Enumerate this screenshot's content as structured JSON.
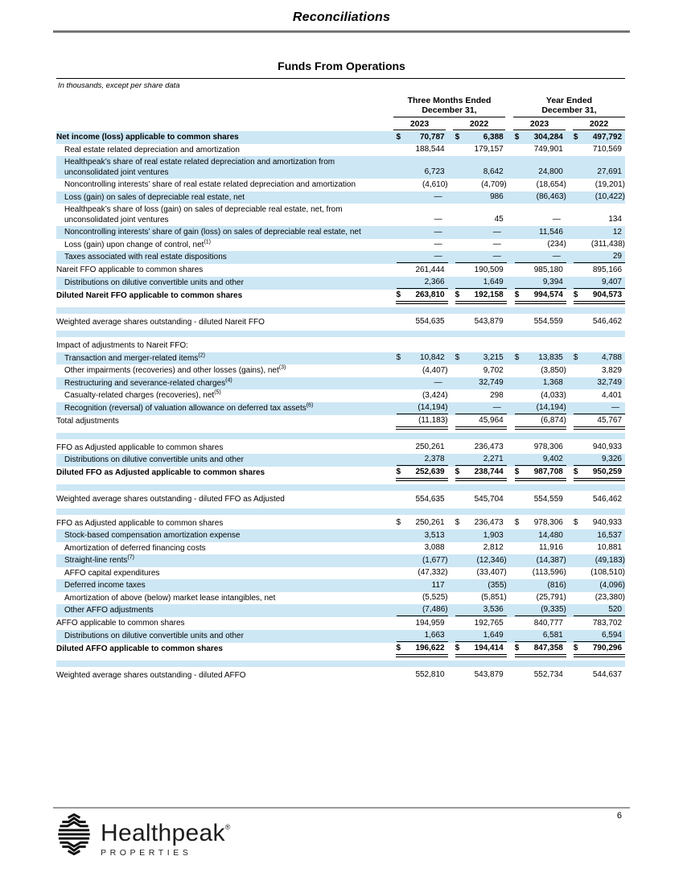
{
  "page": {
    "header_title": "Reconciliations",
    "page_number": "6"
  },
  "report": {
    "title": "Funds From Operations",
    "units_note": "In thousands, except per share data",
    "header": {
      "groups": [
        {
          "line1": "Three Months Ended",
          "line2": "December 31,"
        },
        {
          "line1": "Year Ended",
          "line2": "December 31,"
        }
      ],
      "years": [
        "2023",
        "2022",
        "2023",
        "2022"
      ]
    }
  },
  "table": {
    "rows": [
      {
        "label": "Net income (loss) applicable to common shares",
        "indent": 0,
        "bold": true,
        "shaded": true,
        "dollar": true,
        "values": [
          "70,787",
          "6,388",
          "304,284",
          "497,792"
        ],
        "rule": ""
      },
      {
        "label": "Real estate related depreciation and amortization",
        "indent": 1,
        "values": [
          "188,544",
          "179,157",
          "749,901",
          "710,569"
        ],
        "rule": ""
      },
      {
        "label": "Healthpeak’s share of real estate related depreciation and amortization from unconsolidated joint ventures",
        "indent": 1,
        "shaded": true,
        "values": [
          "6,723",
          "8,642",
          "24,800",
          "27,691"
        ],
        "rule": ""
      },
      {
        "label": "Noncontrolling interests’ share of real estate related depreciation and amortization",
        "indent": 1,
        "values": [
          "(4,610)",
          "(4,709)",
          "(18,654)",
          "(19,201)"
        ],
        "rule": ""
      },
      {
        "label": "Loss (gain) on sales of depreciable real estate, net",
        "indent": 1,
        "shaded": true,
        "values": [
          "—",
          "986",
          "(86,463)",
          "(10,422)"
        ],
        "rule": ""
      },
      {
        "label": "Healthpeak’s share of loss (gain) on sales of depreciable real estate, net, from unconsolidated joint ventures",
        "indent": 1,
        "values": [
          "—",
          "45",
          "—",
          "134"
        ],
        "rule": ""
      },
      {
        "label": "Noncontrolling interests’ share of gain (loss) on sales of depreciable real estate, net",
        "indent": 1,
        "shaded": true,
        "values": [
          "—",
          "—",
          "11,546",
          "12"
        ],
        "rule": ""
      },
      {
        "label": "Loss (gain) upon change of control, net",
        "sup": "(1)",
        "indent": 1,
        "values": [
          "—",
          "—",
          "(234)",
          "(311,438)"
        ],
        "rule": ""
      },
      {
        "label": "Taxes associated with real estate dispositions",
        "indent": 1,
        "shaded": true,
        "values": [
          "—",
          "—",
          "—",
          "29"
        ],
        "rule": "single"
      },
      {
        "label": "Nareit FFO applicable to common shares",
        "indent": 0,
        "values": [
          "261,444",
          "190,509",
          "985,180",
          "895,166"
        ],
        "rule": ""
      },
      {
        "label": "Distributions on dilutive convertible units and other",
        "indent": 1,
        "shaded": true,
        "values": [
          "2,366",
          "1,649",
          "9,394",
          "9,407"
        ],
        "rule": "single"
      },
      {
        "label": "Diluted Nareit FFO applicable to common shares",
        "indent": 0,
        "bold": true,
        "dollar": true,
        "values": [
          "263,810",
          "192,158",
          "994,574",
          "904,573"
        ],
        "rule": "double"
      },
      {
        "blank": true
      },
      {
        "label": "Weighted average shares outstanding - diluted Nareit FFO",
        "indent": 0,
        "values": [
          "554,635",
          "543,879",
          "554,559",
          "546,462"
        ],
        "rule": ""
      },
      {
        "blank": true
      },
      {
        "label": "Impact of adjustments to Nareit FFO:",
        "indent": 0,
        "values": [
          "",
          "",
          "",
          ""
        ],
        "rule": ""
      },
      {
        "label": "Transaction and merger-related items",
        "sup": "(2)",
        "indent": 1,
        "shaded": true,
        "dollar": true,
        "values": [
          "10,842",
          "3,215",
          "13,835",
          "4,788"
        ],
        "rule": ""
      },
      {
        "label": "Other impairments (recoveries) and other losses (gains), net",
        "sup": "(3)",
        "indent": 1,
        "values": [
          "(4,407)",
          "9,702",
          "(3,850)",
          "3,829"
        ],
        "rule": ""
      },
      {
        "label": "Restructuring and severance-related charges",
        "sup": "(4)",
        "indent": 1,
        "shaded": true,
        "values": [
          "—",
          "32,749",
          "1,368",
          "32,749"
        ],
        "rule": ""
      },
      {
        "label": "Casualty-related charges (recoveries), net",
        "sup": "(5)",
        "indent": 1,
        "values": [
          "(3,424)",
          "298",
          "(4,033)",
          "4,401"
        ],
        "rule": ""
      },
      {
        "label": "Recognition (reversal) of valuation allowance on deferred tax assets",
        "sup": "(6)",
        "indent": 1,
        "shaded": true,
        "values": [
          "(14,194)",
          "—",
          "(14,194)",
          "—"
        ],
        "rule": "single"
      },
      {
        "label": "Total adjustments",
        "indent": 0,
        "values": [
          "(11,183)",
          "45,964",
          "(6,874)",
          "45,767"
        ],
        "rule": "double"
      },
      {
        "blank": true
      },
      {
        "label": "FFO as Adjusted applicable to common shares",
        "indent": 0,
        "values": [
          "250,261",
          "236,473",
          "978,306",
          "940,933"
        ],
        "rule": ""
      },
      {
        "label": "Distributions on dilutive convertible units and other",
        "indent": 1,
        "shaded": true,
        "values": [
          "2,378",
          "2,271",
          "9,402",
          "9,326"
        ],
        "rule": "single"
      },
      {
        "label": "Diluted FFO as Adjusted applicable to common shares",
        "indent": 0,
        "bold": true,
        "dollar": true,
        "values": [
          "252,639",
          "238,744",
          "987,708",
          "950,259"
        ],
        "rule": "double"
      },
      {
        "blank": true
      },
      {
        "label": "Weighted average shares outstanding - diluted FFO as Adjusted",
        "indent": 0,
        "values": [
          "554,635",
          "545,704",
          "554,559",
          "546,462"
        ],
        "rule": ""
      },
      {
        "blank": true
      },
      {
        "label": "FFO as Adjusted applicable to common shares",
        "indent": 0,
        "dollar": true,
        "values": [
          "250,261",
          "236,473",
          "978,306",
          "940,933"
        ],
        "rule": ""
      },
      {
        "label": "Stock-based compensation amortization expense",
        "indent": 1,
        "shaded": true,
        "values": [
          "3,513",
          "1,903",
          "14,480",
          "16,537"
        ],
        "rule": ""
      },
      {
        "label": "Amortization of deferred financing costs",
        "indent": 1,
        "values": [
          "3,088",
          "2,812",
          "11,916",
          "10,881"
        ],
        "rule": ""
      },
      {
        "label": "Straight-line rents",
        "sup": "(7)",
        "indent": 1,
        "shaded": true,
        "values": [
          "(1,677)",
          "(12,346)",
          "(14,387)",
          "(49,183)"
        ],
        "rule": ""
      },
      {
        "label": "AFFO capital expenditures",
        "indent": 1,
        "values": [
          "(47,332)",
          "(33,407)",
          "(113,596)",
          "(108,510)"
        ],
        "rule": ""
      },
      {
        "label": "Deferred income taxes",
        "indent": 1,
        "shaded": true,
        "values": [
          "117",
          "(355)",
          "(816)",
          "(4,096)"
        ],
        "rule": ""
      },
      {
        "label": "Amortization of above (below) market lease intangibles, net",
        "indent": 1,
        "values": [
          "(5,525)",
          "(5,851)",
          "(25,791)",
          "(23,380)"
        ],
        "rule": ""
      },
      {
        "label": "Other AFFO adjustments",
        "indent": 1,
        "shaded": true,
        "values": [
          "(7,486)",
          "3,536",
          "(9,335)",
          "520"
        ],
        "rule": "single"
      },
      {
        "label": "AFFO applicable to common shares",
        "indent": 0,
        "values": [
          "194,959",
          "192,765",
          "840,777",
          "783,702"
        ],
        "rule": ""
      },
      {
        "label": "Distributions on dilutive convertible units and other",
        "indent": 1,
        "shaded": true,
        "values": [
          "1,663",
          "1,649",
          "6,581",
          "6,594"
        ],
        "rule": "single"
      },
      {
        "label": "Diluted AFFO applicable to common shares",
        "indent": 0,
        "bold": true,
        "dollar": true,
        "values": [
          "196,622",
          "194,414",
          "847,358",
          "790,296"
        ],
        "rule": "double"
      },
      {
        "blank": true
      },
      {
        "label": "Weighted average shares outstanding - diluted AFFO",
        "indent": 0,
        "values": [
          "552,810",
          "543,879",
          "552,734",
          "544,637"
        ],
        "rule": ""
      }
    ]
  },
  "footer": {
    "brand_name": "Healthpeak",
    "brand_reg": "®",
    "brand_sub": "PROPERTIES"
  }
}
